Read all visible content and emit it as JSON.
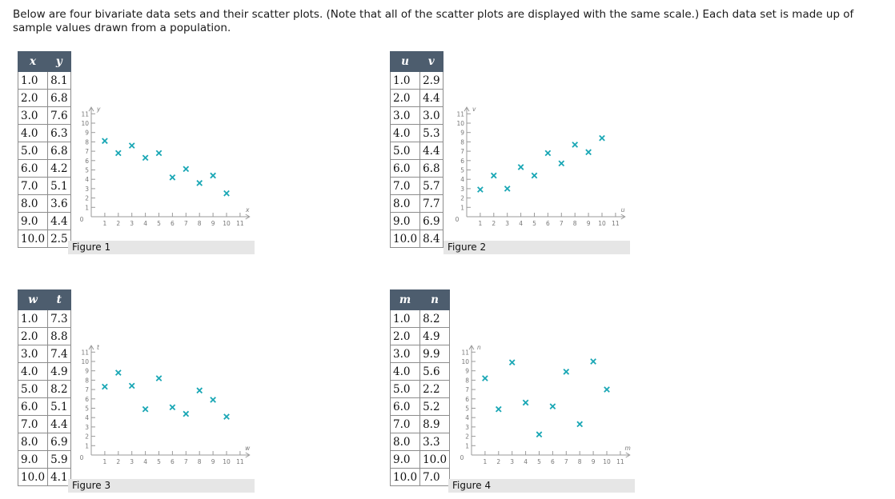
{
  "intro": "Below are four bivariate data sets and their scatter plots. (Note that all of the scatter plots are displayed with the same scale.) Each data set is made up of sample values drawn from a population.",
  "marker_color": "#1aa7b5",
  "header_color": "#4d5d6e",
  "chart_data": [
    {
      "type": "scatter",
      "caption": "Figure 1",
      "xvar": "x",
      "yvar": "y",
      "xlabel": "x",
      "ylabel": "y",
      "xlim": [
        0,
        11
      ],
      "ylim": [
        0,
        11
      ],
      "grid": false,
      "ticks": [
        "1",
        "2",
        "3",
        "4",
        "5",
        "6",
        "7",
        "8",
        "9",
        "10",
        "11"
      ],
      "zero": "0",
      "x": [
        "1.0",
        "2.0",
        "3.0",
        "4.0",
        "5.0",
        "6.0",
        "7.0",
        "8.0",
        "9.0",
        "10.0"
      ],
      "y": [
        "8.1",
        "6.8",
        "7.6",
        "6.3",
        "6.8",
        "4.2",
        "5.1",
        "3.6",
        "4.4",
        "2.5"
      ]
    },
    {
      "type": "scatter",
      "caption": "Figure 2",
      "xvar": "u",
      "yvar": "v",
      "xlabel": "u",
      "ylabel": "v",
      "xlim": [
        0,
        11
      ],
      "ylim": [
        0,
        11
      ],
      "grid": false,
      "ticks": [
        "1",
        "2",
        "3",
        "4",
        "5",
        "6",
        "7",
        "8",
        "9",
        "10",
        "11"
      ],
      "zero": "0",
      "x": [
        "1.0",
        "2.0",
        "3.0",
        "4.0",
        "5.0",
        "6.0",
        "7.0",
        "8.0",
        "9.0",
        "10.0"
      ],
      "y": [
        "2.9",
        "4.4",
        "3.0",
        "5.3",
        "4.4",
        "6.8",
        "5.7",
        "7.7",
        "6.9",
        "8.4"
      ]
    },
    {
      "type": "scatter",
      "caption": "Figure 3",
      "xvar": "w",
      "yvar": "t",
      "xlabel": "w",
      "ylabel": "t",
      "xlim": [
        0,
        11
      ],
      "ylim": [
        0,
        11
      ],
      "grid": false,
      "ticks": [
        "1",
        "2",
        "3",
        "4",
        "5",
        "6",
        "7",
        "8",
        "9",
        "10",
        "11"
      ],
      "zero": "0",
      "x": [
        "1.0",
        "2.0",
        "3.0",
        "4.0",
        "5.0",
        "6.0",
        "7.0",
        "8.0",
        "9.0",
        "10.0"
      ],
      "y": [
        "7.3",
        "8.8",
        "7.4",
        "4.9",
        "8.2",
        "5.1",
        "4.4",
        "6.9",
        "5.9",
        "4.1"
      ]
    },
    {
      "type": "scatter",
      "caption": "Figure 4",
      "xvar": "m",
      "yvar": "n",
      "xlabel": "m",
      "ylabel": "n",
      "xlim": [
        0,
        11
      ],
      "ylim": [
        0,
        11
      ],
      "grid": false,
      "ticks": [
        "1",
        "2",
        "3",
        "4",
        "5",
        "6",
        "7",
        "8",
        "9",
        "10",
        "11"
      ],
      "zero": "0",
      "x": [
        "1.0",
        "2.0",
        "3.0",
        "4.0",
        "5.0",
        "6.0",
        "7.0",
        "8.0",
        "9.0",
        "10.0"
      ],
      "y": [
        "8.2",
        "4.9",
        "9.9",
        "5.6",
        "2.2",
        "5.2",
        "8.9",
        "3.3",
        "10.0",
        "7.0"
      ]
    }
  ]
}
